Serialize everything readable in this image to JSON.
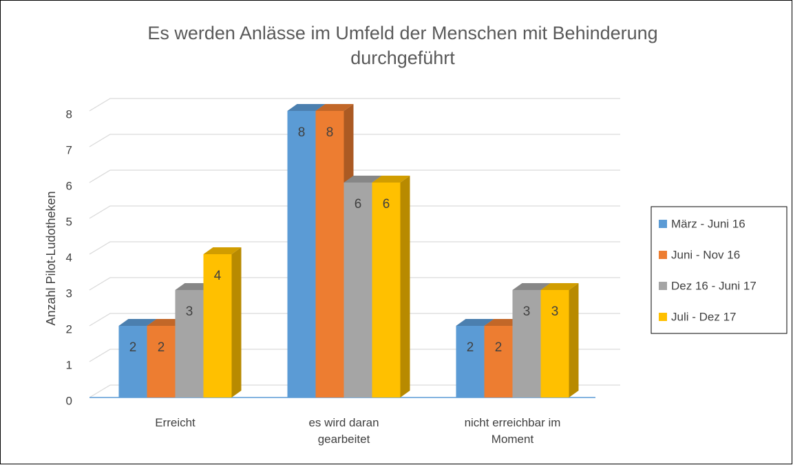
{
  "chart_data": {
    "type": "bar3d",
    "title": "Es werden Anlässe im Umfeld der Menschen mit Behinderung durchgeführt",
    "y_label": "Anzahl  Pilot-Ludotheken",
    "categories": [
      "Erreicht",
      "es wird daran gearbeitet",
      "nicht erreichbar im Moment"
    ],
    "series": [
      {
        "name": "März - Juni 16",
        "color": "#5b9bd5",
        "values": [
          2,
          8,
          2
        ]
      },
      {
        "name": "Juni - Nov 16",
        "color": "#ed7d31",
        "values": [
          2,
          8,
          2
        ]
      },
      {
        "name": "Dez 16 - Juni 17",
        "color": "#a5a5a5",
        "values": [
          3,
          6,
          3
        ]
      },
      {
        "name": "Juli - Dez 17",
        "color": "#ffc000",
        "values": [
          4,
          6,
          3
        ]
      }
    ],
    "ylim": [
      0,
      8
    ],
    "yticks": [
      0,
      1,
      2,
      3,
      4,
      5,
      6,
      7,
      8
    ],
    "grid": true,
    "legend": "right"
  }
}
